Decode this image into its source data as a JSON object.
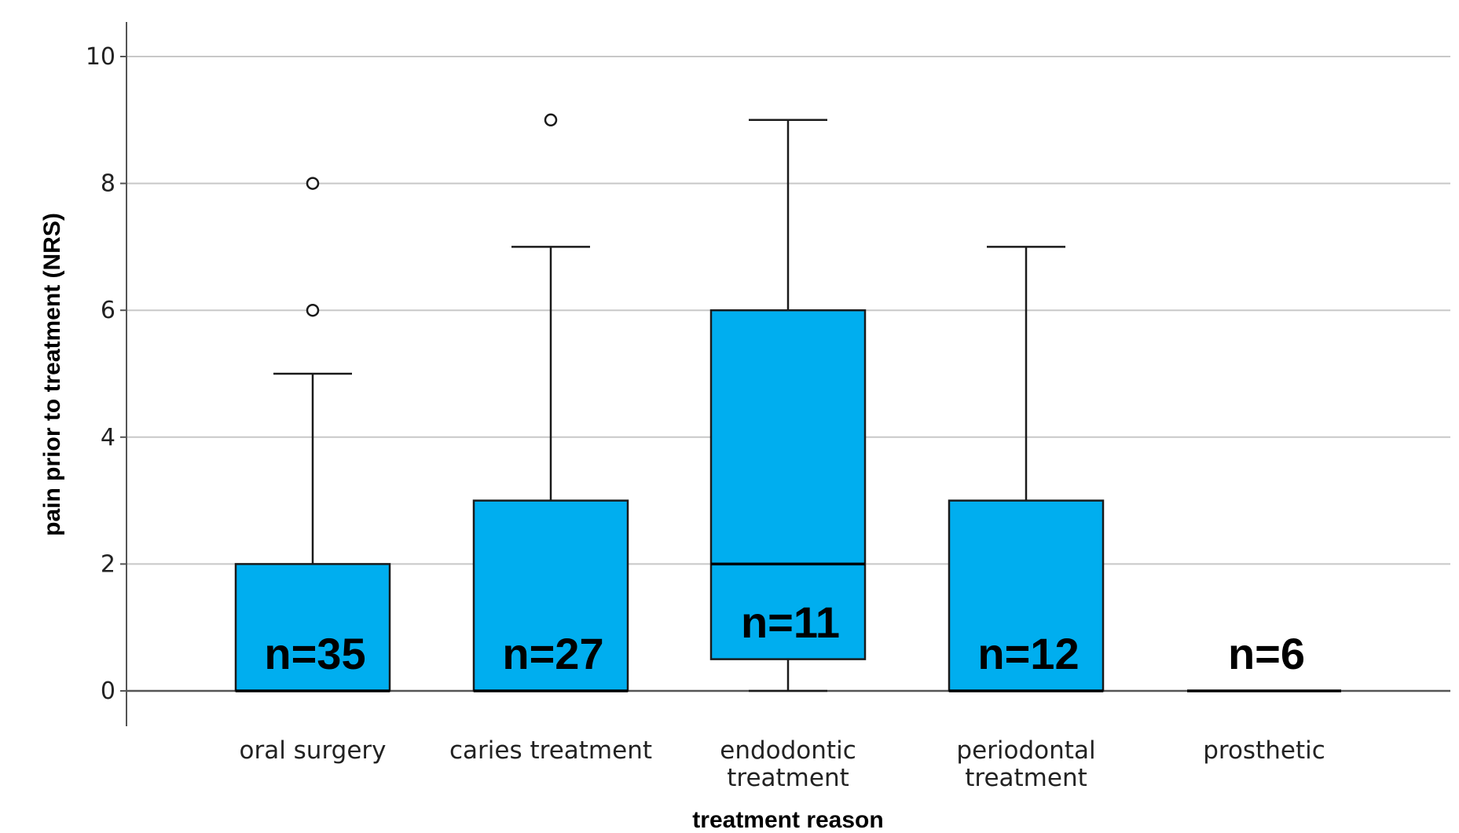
{
  "chart_data": {
    "type": "boxplot",
    "xlabel": "treatment reason",
    "ylabel": "pain prior to treatment (NRS)",
    "ylim": [
      -0.5,
      10.5
    ],
    "yticks": [
      "0",
      "2",
      "4",
      "6",
      "8",
      "10"
    ],
    "grid": true,
    "box_color": "#00AEEF",
    "categories": [
      {
        "label_lines": [
          "oral surgery"
        ],
        "n_label": "n=35",
        "whisker_low": 0,
        "q1": 0,
        "median": 0,
        "q3": 2,
        "whisker_high": 5,
        "outliers": [
          6,
          8
        ]
      },
      {
        "label_lines": [
          "caries treatment"
        ],
        "n_label": "n=27",
        "whisker_low": 0,
        "q1": 0,
        "median": 0,
        "q3": 3,
        "whisker_high": 7,
        "outliers": [
          9
        ]
      },
      {
        "label_lines": [
          "endodontic",
          "treatment"
        ],
        "n_label": "n=11",
        "whisker_low": 0,
        "q1": 0.5,
        "median": 2,
        "q3": 6,
        "whisker_high": 9,
        "outliers": []
      },
      {
        "label_lines": [
          "periodontal",
          "treatment"
        ],
        "n_label": "n=12",
        "whisker_low": 0,
        "q1": 0,
        "median": 0,
        "q3": 3,
        "whisker_high": 7,
        "outliers": []
      },
      {
        "label_lines": [
          "prosthetic"
        ],
        "n_label": "n=6",
        "whisker_low": 0,
        "q1": 0,
        "median": 0,
        "q3": 0,
        "whisker_high": 0,
        "outliers": []
      }
    ]
  }
}
